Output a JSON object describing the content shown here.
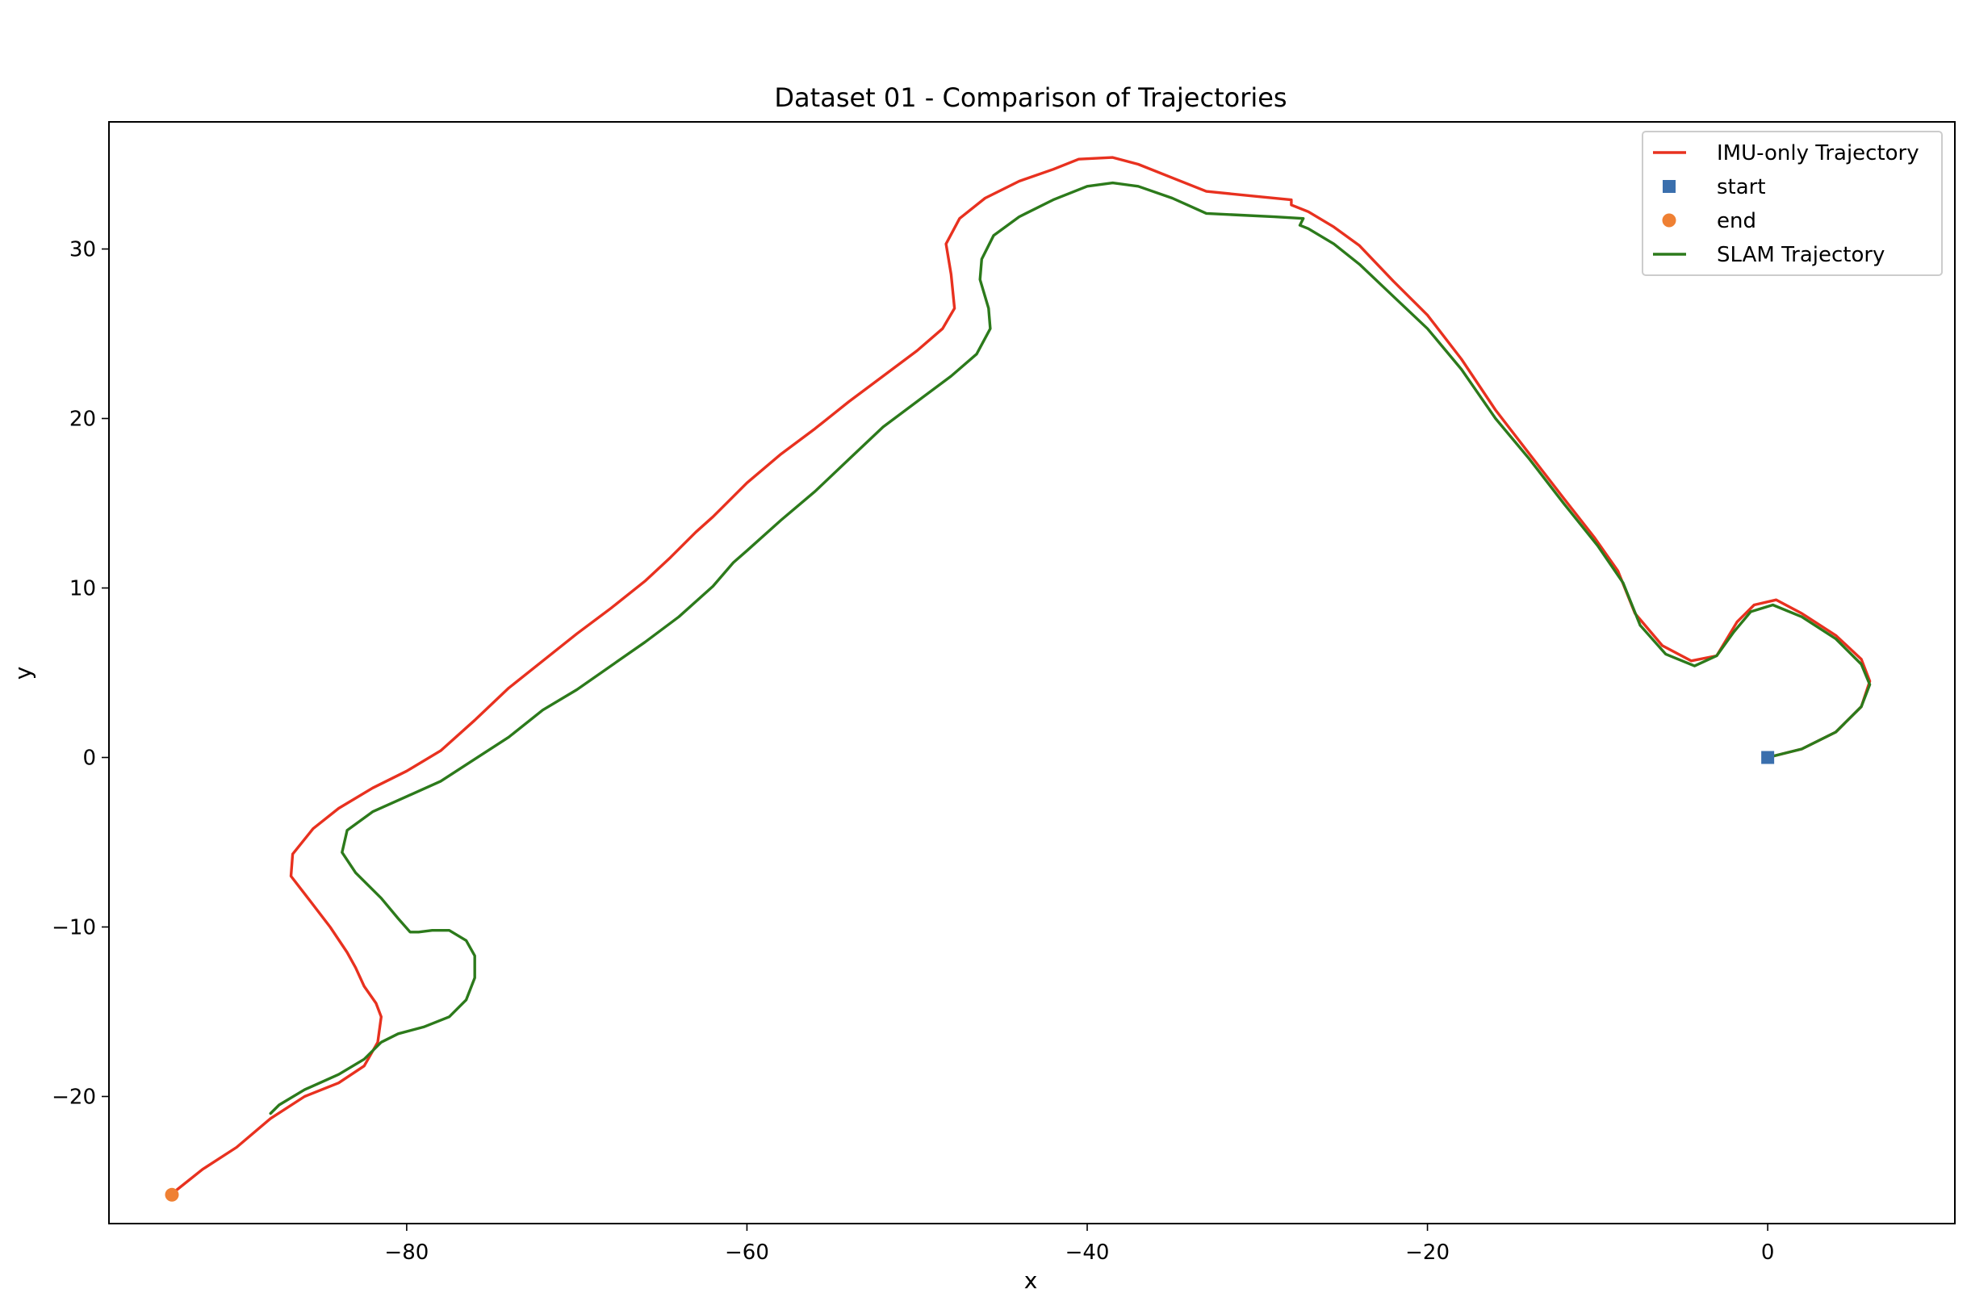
{
  "chart_data": {
    "type": "line",
    "title": "Dataset 01 - Comparison of Trajectories",
    "xlabel": "x",
    "ylabel": "y",
    "xlim": [
      -97.5,
      11
    ],
    "ylim": [
      -27.5,
      37.5
    ],
    "xticks": [
      -80,
      -60,
      -40,
      -20,
      0
    ],
    "yticks": [
      -20,
      -10,
      0,
      10,
      20,
      30
    ],
    "xtick_labels": [
      "−80",
      "−60",
      "−40",
      "−20",
      "0"
    ],
    "ytick_labels": [
      "−20",
      "−10",
      "0",
      "10",
      "20",
      "30"
    ],
    "grid": false,
    "legend_position": "top-right",
    "legend": [
      {
        "label": "IMU-only Trajectory",
        "kind": "line",
        "color": "#e8311f"
      },
      {
        "label": "start",
        "kind": "square",
        "color": "#3a6fad"
      },
      {
        "label": "end",
        "kind": "circle",
        "color": "#ef8033"
      },
      {
        "label": "SLAM Trajectory",
        "kind": "line",
        "color": "#2c7a1b"
      }
    ],
    "series": [
      {
        "name": "IMU-only Trajectory",
        "color": "#e8311f",
        "points": [
          [
            0,
            0
          ],
          [
            2.0,
            0.5
          ],
          [
            4.0,
            1.5
          ],
          [
            5.5,
            3.0
          ],
          [
            6.0,
            4.5
          ],
          [
            5.5,
            5.8
          ],
          [
            4.0,
            7.2
          ],
          [
            2.0,
            8.5
          ],
          [
            0.5,
            9.3
          ],
          [
            -0.8,
            9.0
          ],
          [
            -1.8,
            8.0
          ],
          [
            -3.0,
            6.0
          ],
          [
            -4.5,
            5.7
          ],
          [
            -6.2,
            6.6
          ],
          [
            -7.8,
            8.5
          ],
          [
            -8.8,
            11.0
          ],
          [
            -10.2,
            13.0
          ],
          [
            -12.0,
            15.3
          ],
          [
            -14.0,
            17.9
          ],
          [
            -16.0,
            20.5
          ],
          [
            -18.0,
            23.5
          ],
          [
            -20.0,
            26.1
          ],
          [
            -22.0,
            28.1
          ],
          [
            -24.0,
            30.2
          ],
          [
            -25.5,
            31.3
          ],
          [
            -27.0,
            32.2
          ],
          [
            -28.0,
            32.6
          ],
          [
            -28.0,
            32.9
          ],
          [
            -30.0,
            33.1
          ],
          [
            -33.0,
            33.4
          ],
          [
            -35.0,
            34.2
          ],
          [
            -37.0,
            35.0
          ],
          [
            -38.5,
            35.4
          ],
          [
            -40.5,
            35.3
          ],
          [
            -42.0,
            34.7
          ],
          [
            -44.0,
            34.0
          ],
          [
            -46.0,
            33.0
          ],
          [
            -47.5,
            31.8
          ],
          [
            -48.3,
            30.3
          ],
          [
            -48.0,
            28.5
          ],
          [
            -47.8,
            26.5
          ],
          [
            -48.5,
            25.3
          ],
          [
            -50.0,
            24.0
          ],
          [
            -52.0,
            22.5
          ],
          [
            -54.0,
            21.0
          ],
          [
            -56.0,
            19.4
          ],
          [
            -58.0,
            17.9
          ],
          [
            -60.0,
            16.2
          ],
          [
            -62.0,
            14.2
          ],
          [
            -63.0,
            13.3
          ],
          [
            -64.5,
            11.8
          ],
          [
            -66.0,
            10.4
          ],
          [
            -68.0,
            8.8
          ],
          [
            -70.0,
            7.3
          ],
          [
            -72.0,
            5.7
          ],
          [
            -74.0,
            4.1
          ],
          [
            -76.0,
            2.2
          ],
          [
            -78.0,
            0.4
          ],
          [
            -80.0,
            -0.8
          ],
          [
            -82.0,
            -1.8
          ],
          [
            -84.0,
            -3.0
          ],
          [
            -85.5,
            -4.2
          ],
          [
            -86.7,
            -5.7
          ],
          [
            -86.8,
            -7.0
          ],
          [
            -85.8,
            -8.3
          ],
          [
            -84.5,
            -10.0
          ],
          [
            -83.5,
            -11.5
          ],
          [
            -83.0,
            -12.4
          ],
          [
            -82.5,
            -13.5
          ],
          [
            -81.8,
            -14.5
          ],
          [
            -81.5,
            -15.3
          ],
          [
            -81.7,
            -16.8
          ],
          [
            -82.5,
            -18.2
          ],
          [
            -84.0,
            -19.2
          ],
          [
            -86.0,
            -20.0
          ],
          [
            -88.0,
            -21.3
          ],
          [
            -90.0,
            -23.0
          ],
          [
            -92.0,
            -24.3
          ],
          [
            -93.5,
            -25.5
          ],
          [
            -93.8,
            -25.8
          ]
        ]
      },
      {
        "name": "SLAM Trajectory",
        "color": "#2c7a1b",
        "points": [
          [
            0,
            0
          ],
          [
            2.0,
            0.5
          ],
          [
            4.0,
            1.5
          ],
          [
            5.5,
            3.0
          ],
          [
            6.0,
            4.3
          ],
          [
            5.5,
            5.5
          ],
          [
            4.0,
            7.0
          ],
          [
            2.0,
            8.3
          ],
          [
            0.3,
            9.0
          ],
          [
            -1.0,
            8.6
          ],
          [
            -2.0,
            7.4
          ],
          [
            -3.0,
            6.0
          ],
          [
            -4.3,
            5.4
          ],
          [
            -6.0,
            6.1
          ],
          [
            -7.5,
            7.8
          ],
          [
            -8.5,
            10.3
          ],
          [
            -10.0,
            12.5
          ],
          [
            -12.0,
            15.0
          ],
          [
            -14.0,
            17.6
          ],
          [
            -16.0,
            20.0
          ],
          [
            -18.0,
            22.9
          ],
          [
            -20.0,
            25.3
          ],
          [
            -22.0,
            27.2
          ],
          [
            -24.0,
            29.1
          ],
          [
            -25.5,
            30.3
          ],
          [
            -27.0,
            31.2
          ],
          [
            -27.5,
            31.4
          ],
          [
            -27.3,
            31.8
          ],
          [
            -29.0,
            31.9
          ],
          [
            -31.0,
            32.0
          ],
          [
            -33.0,
            32.1
          ],
          [
            -35.0,
            33.0
          ],
          [
            -37.0,
            33.7
          ],
          [
            -38.5,
            33.9
          ],
          [
            -40.0,
            33.7
          ],
          [
            -42.0,
            32.9
          ],
          [
            -44.0,
            31.9
          ],
          [
            -45.5,
            30.8
          ],
          [
            -46.2,
            29.4
          ],
          [
            -46.3,
            28.2
          ],
          [
            -45.8,
            26.5
          ],
          [
            -45.7,
            25.3
          ],
          [
            -46.5,
            23.8
          ],
          [
            -48.0,
            22.5
          ],
          [
            -50.0,
            21.0
          ],
          [
            -52.0,
            19.5
          ],
          [
            -54.0,
            17.6
          ],
          [
            -56.0,
            15.7
          ],
          [
            -58.0,
            14.0
          ],
          [
            -60.0,
            12.2
          ],
          [
            -60.8,
            11.5
          ],
          [
            -62.0,
            10.1
          ],
          [
            -64.0,
            8.3
          ],
          [
            -66.0,
            6.8
          ],
          [
            -68.0,
            5.4
          ],
          [
            -70.0,
            4.0
          ],
          [
            -72.0,
            2.8
          ],
          [
            -74.0,
            1.2
          ],
          [
            -76.0,
            -0.1
          ],
          [
            -78.0,
            -1.4
          ],
          [
            -80.0,
            -2.3
          ],
          [
            -82.0,
            -3.2
          ],
          [
            -83.5,
            -4.3
          ],
          [
            -83.8,
            -5.6
          ],
          [
            -83.0,
            -6.8
          ],
          [
            -81.5,
            -8.3
          ],
          [
            -80.5,
            -9.5
          ],
          [
            -79.8,
            -10.3
          ],
          [
            -79.3,
            -10.3
          ],
          [
            -78.5,
            -10.2
          ],
          [
            -77.5,
            -10.2
          ],
          [
            -76.5,
            -10.8
          ],
          [
            -76.0,
            -11.7
          ],
          [
            -76.0,
            -13.0
          ],
          [
            -76.5,
            -14.3
          ],
          [
            -77.5,
            -15.3
          ],
          [
            -79.0,
            -15.9
          ],
          [
            -80.5,
            -16.3
          ],
          [
            -81.5,
            -16.8
          ],
          [
            -82.5,
            -17.8
          ],
          [
            -84.0,
            -18.7
          ],
          [
            -86.0,
            -19.6
          ],
          [
            -87.5,
            -20.5
          ],
          [
            -88.0,
            -21.0
          ]
        ]
      }
    ],
    "markers": [
      {
        "name": "start",
        "shape": "square",
        "color": "#3a6fad",
        "x": 0,
        "y": 0
      },
      {
        "name": "end",
        "shape": "circle",
        "color": "#ef8033",
        "x": -93.8,
        "y": -25.8
      }
    ]
  }
}
